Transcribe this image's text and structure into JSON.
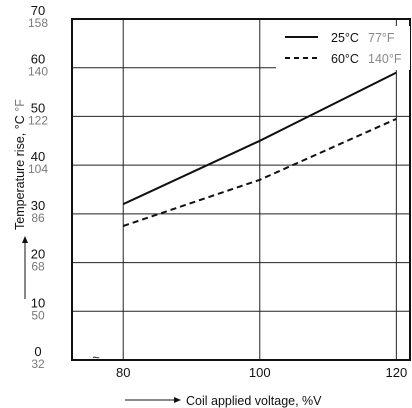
{
  "chart_data": {
    "type": "line",
    "xlabel": "Coil applied voltage, %V",
    "ylabel": "Temperature rise, °C °F",
    "ylabel_c_part": "Temperature rise, °C ",
    "ylabel_f_part": "°F",
    "x_ticks": [
      "80",
      "100",
      "120"
    ],
    "x_values": [
      80,
      100,
      120
    ],
    "y_ticks_c": [
      "0",
      "10",
      "20",
      "30",
      "40",
      "50",
      "60",
      "70"
    ],
    "y_ticks_f": [
      "32",
      "50",
      "68",
      "86",
      "104",
      "122",
      "140",
      "158"
    ],
    "ylim": [
      0,
      70
    ],
    "xlim": [
      72.5,
      122
    ],
    "axis_break_symbol": "≈",
    "grid": true,
    "legend_position": "top-right",
    "series": [
      {
        "name": "25°C",
        "name_f": "77°F",
        "style": "solid",
        "x": [
          80,
          100,
          120
        ],
        "y": [
          32.0,
          45.0,
          59.0
        ]
      },
      {
        "name": "60°C",
        "name_f": "140°F",
        "style": "dashed",
        "x": [
          80,
          100,
          120
        ],
        "y": [
          27.5,
          37.0,
          49.5
        ]
      }
    ]
  }
}
